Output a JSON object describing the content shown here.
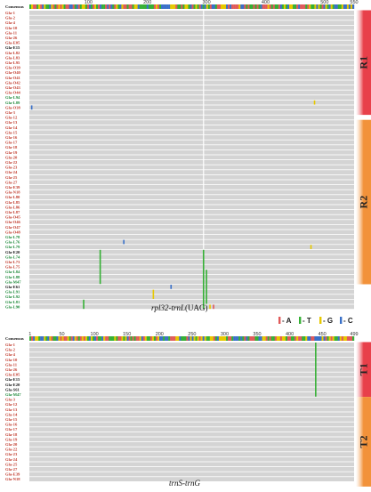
{
  "colors": {
    "red": "#c0392b",
    "green": "#1e8a3a",
    "black": "#111111",
    "A": "#e05a5a",
    "T": "#35b035",
    "G": "#e6c800",
    "C": "#3a70c8",
    "row_bg": "#d4d4d4",
    "R1": "#e8404a",
    "R2": "#f2923a",
    "T1": "#e8404a",
    "T2": "#f2923a"
  },
  "legend": [
    {
      "base": "A",
      "label": "- A"
    },
    {
      "base": "T",
      "label": "- T"
    },
    {
      "base": "G",
      "label": "- G"
    },
    {
      "base": "C",
      "label": "- C"
    }
  ],
  "panels": [
    {
      "caption_main": "rpl32-trnL",
      "caption_suffix": "(UAG)",
      "consensus_label": "Consensus",
      "length": 550,
      "ticks": [
        "100",
        "200",
        "300",
        "400",
        "500",
        "550"
      ],
      "tick_values": [
        100,
        200,
        300,
        400,
        500,
        550
      ],
      "gap_pos": 295,
      "groups": [
        {
          "name": "R1",
          "start": 0,
          "end": 20
        },
        {
          "name": "R2",
          "start": 22,
          "end": 54
        }
      ],
      "sequences": [
        {
          "name": "Gla-1",
          "c": "red"
        },
        {
          "name": "Gla-2",
          "c": "red"
        },
        {
          "name": "Gla-4",
          "c": "red"
        },
        {
          "name": "Gla-10",
          "c": "red"
        },
        {
          "name": "Gla-11",
          "c": "red"
        },
        {
          "name": "Gla-26",
          "c": "red"
        },
        {
          "name": "Gla-E05",
          "c": "red"
        },
        {
          "name": "Gla-E15",
          "c": "black"
        },
        {
          "name": "Gla-L82",
          "c": "red"
        },
        {
          "name": "Gla-L83",
          "c": "red"
        },
        {
          "name": "Gla-L95",
          "c": "red"
        },
        {
          "name": "Gla-O39",
          "c": "red"
        },
        {
          "name": "Gla-O40",
          "c": "red"
        },
        {
          "name": "Gla-O41",
          "c": "red"
        },
        {
          "name": "Gla-O42",
          "c": "red"
        },
        {
          "name": "Gla-O43",
          "c": "red"
        },
        {
          "name": "Gla-O44",
          "c": "red"
        },
        {
          "name": "Gla-L94",
          "c": "green"
        },
        {
          "name": "Gla-L89",
          "c": "green"
        },
        {
          "name": "Gla-O38",
          "c": "red"
        },
        {
          "name": "Gla-3",
          "c": "red"
        },
        {
          "name": "Gla-12",
          "c": "red"
        },
        {
          "name": "Gla-13",
          "c": "red"
        },
        {
          "name": "Gla-14",
          "c": "red"
        },
        {
          "name": "Gla-15",
          "c": "red"
        },
        {
          "name": "Gla-16",
          "c": "red"
        },
        {
          "name": "Gla-17",
          "c": "red"
        },
        {
          "name": "Gla-18",
          "c": "red"
        },
        {
          "name": "Gla-19",
          "c": "red"
        },
        {
          "name": "Gla-20",
          "c": "red"
        },
        {
          "name": "Gla-22",
          "c": "red"
        },
        {
          "name": "Gla-23",
          "c": "red"
        },
        {
          "name": "Gla-24",
          "c": "red"
        },
        {
          "name": "Gla-25",
          "c": "red"
        },
        {
          "name": "Gla-27",
          "c": "red"
        },
        {
          "name": "Gla-E39",
          "c": "red"
        },
        {
          "name": "Gla-N18",
          "c": "red"
        },
        {
          "name": "Gla-L80",
          "c": "red"
        },
        {
          "name": "Gla-L85",
          "c": "red"
        },
        {
          "name": "Gla-L86",
          "c": "red"
        },
        {
          "name": "Gla-L87",
          "c": "red"
        },
        {
          "name": "Gla-O45",
          "c": "red"
        },
        {
          "name": "Gla-O46",
          "c": "red"
        },
        {
          "name": "Gla-O47",
          "c": "red"
        },
        {
          "name": "Gla-O48",
          "c": "red"
        },
        {
          "name": "Gla-L78",
          "c": "green"
        },
        {
          "name": "Gla-L76",
          "c": "green"
        },
        {
          "name": "Gla-L79",
          "c": "green"
        },
        {
          "name": "Gla-E20",
          "c": "black"
        },
        {
          "name": "Gla-L74",
          "c": "green"
        },
        {
          "name": "Gla-L73",
          "c": "red"
        },
        {
          "name": "Gla-L75",
          "c": "red"
        },
        {
          "name": "Gla-L84",
          "c": "green"
        },
        {
          "name": "Gla-L88",
          "c": "green"
        },
        {
          "name": "Gla-M47",
          "c": "green"
        },
        {
          "name": "Gla-E61",
          "c": "black"
        },
        {
          "name": "Gla-L91",
          "c": "green"
        },
        {
          "name": "Gla-L92",
          "c": "green"
        },
        {
          "name": "Gla-L81",
          "c": "green"
        },
        {
          "name": "Gla-L90",
          "c": "green"
        }
      ],
      "variants": [
        {
          "pos": 4,
          "rows": [
            19,
            19
          ],
          "base": "C"
        },
        {
          "pos": 483,
          "rows": [
            18,
            18
          ],
          "base": "G"
        },
        {
          "pos": 160,
          "rows": [
            46,
            46
          ],
          "base": "C"
        },
        {
          "pos": 477,
          "rows": [
            47,
            47
          ],
          "base": "G"
        },
        {
          "pos": 120,
          "rows": [
            48,
            54
          ],
          "base": "T"
        },
        {
          "pos": 295,
          "rows": [
            48,
            59
          ],
          "base": "T"
        },
        {
          "pos": 300,
          "rows": [
            52,
            58
          ],
          "base": "T"
        },
        {
          "pos": 240,
          "rows": [
            55,
            55
          ],
          "base": "C"
        },
        {
          "pos": 210,
          "rows": [
            56,
            57
          ],
          "base": "G"
        },
        {
          "pos": 92,
          "rows": [
            58,
            59
          ],
          "base": "T"
        },
        {
          "pos": 306,
          "rows": [
            59,
            59
          ],
          "base": "G"
        },
        {
          "pos": 312,
          "rows": [
            59,
            59
          ],
          "base": "A"
        }
      ]
    },
    {
      "caption_main": "trnS-trnG",
      "caption_suffix": "",
      "consensus_label": "Consensus",
      "length": 499,
      "ticks": [
        "1",
        "50",
        "100",
        "150",
        "200",
        "250",
        "300",
        "350",
        "400",
        "450",
        "499"
      ],
      "tick_values": [
        1,
        50,
        100,
        150,
        200,
        250,
        300,
        350,
        400,
        450,
        499
      ],
      "gap_pos": -1,
      "groups": [
        {
          "name": "T1",
          "start": 0,
          "end": 10
        },
        {
          "name": "T2",
          "start": 11,
          "end": 28
        }
      ],
      "sequences": [
        {
          "name": "Gla-1",
          "c": "red"
        },
        {
          "name": "Gla-2",
          "c": "red"
        },
        {
          "name": "Gla-4",
          "c": "red"
        },
        {
          "name": "Gla-10",
          "c": "red"
        },
        {
          "name": "Gla-11",
          "c": "red"
        },
        {
          "name": "Gla-26",
          "c": "red"
        },
        {
          "name": "Gla-E05",
          "c": "red"
        },
        {
          "name": "Gla-E15",
          "c": "black"
        },
        {
          "name": "Gla-E20",
          "c": "black"
        },
        {
          "name": "Gla-S61",
          "c": "black"
        },
        {
          "name": "Gla-M47",
          "c": "green"
        },
        {
          "name": "Gla-3",
          "c": "red"
        },
        {
          "name": "Gla-12",
          "c": "red"
        },
        {
          "name": "Gla-13",
          "c": "red"
        },
        {
          "name": "Gla-14",
          "c": "red"
        },
        {
          "name": "Gla-15",
          "c": "red"
        },
        {
          "name": "Gla-16",
          "c": "red"
        },
        {
          "name": "Gla-17",
          "c": "red"
        },
        {
          "name": "Gla-18",
          "c": "red"
        },
        {
          "name": "Gla-19",
          "c": "red"
        },
        {
          "name": "Gla-20",
          "c": "red"
        },
        {
          "name": "Gla-22",
          "c": "red"
        },
        {
          "name": "Gla-23",
          "c": "red"
        },
        {
          "name": "Gla-24",
          "c": "red"
        },
        {
          "name": "Gla-25",
          "c": "red"
        },
        {
          "name": "Gla-27",
          "c": "red"
        },
        {
          "name": "Gla-E39",
          "c": "red"
        },
        {
          "name": "Gla-N18",
          "c": "red"
        }
      ],
      "variants": [
        {
          "pos": 440,
          "rows": [
            0,
            10
          ],
          "base": "T"
        }
      ]
    }
  ]
}
